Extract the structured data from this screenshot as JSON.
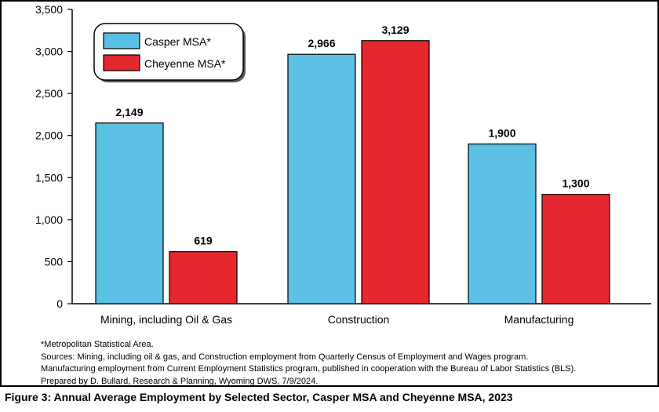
{
  "chart_data": {
    "type": "bar",
    "categories": [
      "Mining, including Oil & Gas",
      "Construction",
      "Manufacturing"
    ],
    "series": [
      {
        "name": "Casper MSA*",
        "values": [
          2149,
          2966,
          1900
        ],
        "labels": [
          "2,149",
          "2,966",
          "1,900"
        ],
        "color": "#5bc0e3"
      },
      {
        "name": "Cheyenne MSA*",
        "values": [
          619,
          3129,
          1300
        ],
        "labels": [
          "619",
          "3,129",
          "1,300"
        ],
        "color": "#e5282e"
      }
    ],
    "yticks": [
      0,
      500,
      1000,
      1500,
      2000,
      2500,
      3000,
      3500
    ],
    "ytick_labels": [
      "0",
      "500",
      "1,000",
      "1,500",
      "2,000",
      "2,500",
      "3,000",
      "3,500"
    ],
    "ylim": [
      0,
      3500
    ],
    "grid": false,
    "legend_position": "top-left",
    "xlabel": "",
    "ylabel": "",
    "title": "Figure 3: Annual Average Employment by Selected Sector, Casper MSA and Cheyenne MSA, 2023"
  },
  "notes": [
    "*Metropolitan Statistical Area.",
    "Sources: Mining, including oil & gas, and Construction employment from Quarterly Census of Employment and Wages program.",
    "Manufacturing employment from Current Employment Statistics program, published in cooperation with the Bureau of Labor Statistics (BLS).",
    "Prepared by D. Bullard, Research & Planning, Wyoming DWS, 7/9/2024."
  ],
  "caption": "Figure 3: Annual Average Employment by Selected Sector, Casper MSA and Cheyenne MSA, 2023"
}
